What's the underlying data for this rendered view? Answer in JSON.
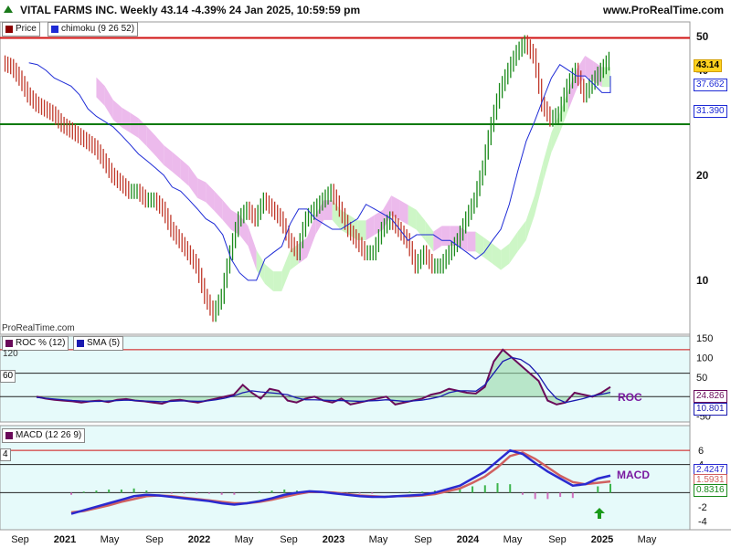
{
  "header": {
    "title": "VITAL FARMS INC. Weekly 43.14 -4.39% 24 Jan 2025, 10:59:59 pm",
    "site": "www.ProRealTime.com"
  },
  "watermark": "ProRealTime.com",
  "colors": {
    "price_bar": "#c0392b",
    "price_bar_up": "#1a8a1a",
    "kijun": "#1e2bd6",
    "cloud_bull": "#c8f5c0",
    "cloud_bear": "#eab3ea",
    "red_line": "#d01010",
    "green_line": "#0a7a0a",
    "roc_line": "#6a0a5a",
    "sma_line": "#1a1ab0",
    "macd_line": "#2a2ad0",
    "signal_line": "#d06060",
    "annot_purple": "#7a1aa0"
  },
  "panels": {
    "price": {
      "legend": [
        {
          "label": "Price",
          "color": "#8b0000"
        },
        {
          "label": "chimoku (9 26 52)",
          "color": "#1e2bd6"
        }
      ],
      "tags": {
        "last": "43.14",
        "kijun": "37.662",
        "tenkan": "31.390"
      }
    },
    "roc": {
      "legend": [
        {
          "label": "ROC % (12)",
          "color": "#6a0a5a"
        },
        {
          "label": "SMA (5)",
          "color": "#1a1ab0"
        }
      ],
      "label": "ROC",
      "level_tags": [
        "120",
        "60"
      ],
      "tags": {
        "roc": "24.826",
        "sma": "10.801"
      }
    },
    "macd": {
      "legend": [
        {
          "label": "MACD (12 26 9)",
          "color": "#6a0a5a"
        }
      ],
      "label": "MACD",
      "level_tags": [
        "4"
      ],
      "tags": {
        "macd": "2.4247",
        "signal": "1.5931",
        "hist": "0.8316"
      }
    }
  },
  "chart_data": [
    {
      "type": "line",
      "title": "VITAL FARMS INC. Weekly",
      "scale": "log",
      "y_ticks": [
        "50",
        "40",
        "20",
        "10"
      ],
      "ylim": [
        7,
        55
      ],
      "x_ticks": [
        "Sep",
        "2021",
        "May",
        "Sep",
        "2022",
        "May",
        "Sep",
        "2023",
        "May",
        "Sep",
        "2024",
        "May",
        "Sep",
        "2025",
        "May"
      ],
      "horizontal_lines": [
        {
          "value": 49.5,
          "color": "red"
        },
        {
          "value": 28,
          "color": "green"
        }
      ],
      "series": [
        {
          "name": "Price",
          "values": [
            42,
            41,
            38,
            34,
            32,
            31,
            30,
            28,
            27,
            26,
            25,
            24,
            22,
            20,
            19,
            18,
            18,
            17,
            17,
            16,
            14,
            13,
            12,
            11,
            9,
            8,
            9,
            12,
            15,
            16,
            15,
            17,
            16,
            15,
            13,
            12,
            15,
            16,
            17,
            18,
            16,
            14,
            13,
            12,
            12,
            14,
            15,
            14,
            13,
            11,
            12,
            11,
            11,
            12,
            13,
            15,
            17,
            21,
            28,
            35,
            40,
            45,
            48,
            44,
            32,
            29,
            30,
            36,
            40,
            34,
            37,
            40,
            43
          ]
        }
      ]
    },
    {
      "type": "line",
      "title": "ROC % (12)",
      "y_ticks": [
        "150",
        "100",
        "50",
        "0",
        "-50"
      ],
      "ylim": [
        -60,
        150
      ],
      "series": [
        {
          "name": "ROC % (12)",
          "values": [
            0,
            -5,
            -8,
            -10,
            -12,
            -15,
            -12,
            -10,
            -14,
            -8,
            -6,
            -10,
            -12,
            -15,
            -18,
            -10,
            -8,
            -12,
            -15,
            -10,
            -5,
            0,
            5,
            30,
            10,
            -5,
            20,
            15,
            -10,
            -15,
            -5,
            0,
            -10,
            -15,
            -5,
            -20,
            -15,
            -10,
            -5,
            0,
            -20,
            -15,
            -10,
            -5,
            5,
            10,
            20,
            15,
            10,
            8,
            25,
            90,
            120,
            100,
            80,
            60,
            40,
            -10,
            -20,
            -15,
            10,
            5,
            0,
            10,
            24.8
          ]
        },
        {
          "name": "SMA (5)",
          "values": [
            -2,
            -4,
            -6,
            -8,
            -10,
            -11,
            -12,
            -12,
            -11,
            -10,
            -9,
            -10,
            -11,
            -12,
            -13,
            -12,
            -11,
            -11,
            -12,
            -11,
            -8,
            -4,
            2,
            10,
            15,
            12,
            10,
            8,
            5,
            -3,
            -8,
            -8,
            -9,
            -10,
            -10,
            -11,
            -12,
            -11,
            -10,
            -8,
            -10,
            -12,
            -11,
            -9,
            -5,
            0,
            10,
            15,
            15,
            14,
            30,
            60,
            90,
            100,
            95,
            80,
            55,
            20,
            -5,
            -15,
            -10,
            -5,
            2,
            6,
            10.8
          ]
        }
      ]
    },
    {
      "type": "line",
      "title": "MACD (12 26 9)",
      "y_ticks": [
        "6",
        "4",
        "2",
        "-2",
        "-4"
      ],
      "ylim": [
        -5,
        9
      ],
      "series": [
        {
          "name": "MACD",
          "values": [
            -3,
            -2.5,
            -2,
            -1.5,
            -1,
            -0.5,
            -0.3,
            -0.4,
            -0.6,
            -0.8,
            -1,
            -1.2,
            -1.5,
            -1.7,
            -1.5,
            -1.2,
            -0.8,
            -0.3,
            0,
            0.2,
            0.1,
            -0.1,
            -0.3,
            -0.5,
            -0.6,
            -0.6,
            -0.5,
            -0.4,
            -0.3,
            0,
            0.5,
            1,
            2,
            3,
            4.5,
            6,
            5.5,
            4.2,
            3,
            2,
            1,
            1.2,
            2,
            2.4247
          ]
        },
        {
          "name": "Signal",
          "values": [
            -2.8,
            -2.6,
            -2.2,
            -1.8,
            -1.3,
            -0.9,
            -0.5,
            -0.4,
            -0.5,
            -0.7,
            -0.9,
            -1.1,
            -1.3,
            -1.5,
            -1.5,
            -1.3,
            -1,
            -0.6,
            -0.2,
            0.1,
            0.1,
            0,
            -0.2,
            -0.4,
            -0.5,
            -0.6,
            -0.5,
            -0.5,
            -0.4,
            -0.2,
            0.2,
            0.6,
            1.4,
            2.3,
            3.6,
            5.2,
            5.7,
            4.8,
            3.6,
            2.4,
            1.5,
            1.2,
            1.4,
            1.5931
          ]
        }
      ]
    }
  ]
}
